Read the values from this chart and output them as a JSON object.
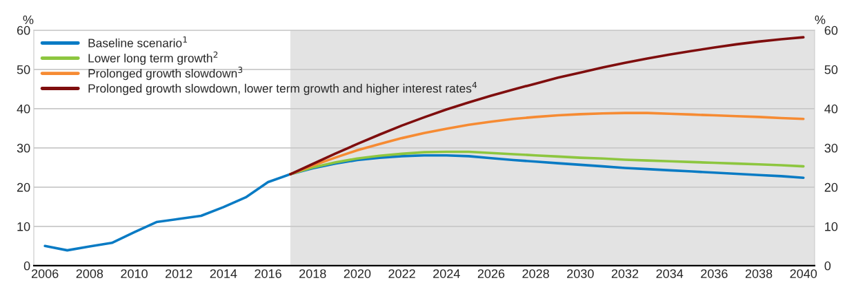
{
  "chart_data": {
    "type": "line",
    "ylabel": "%",
    "y2label": "%",
    "x": [
      2006,
      2007,
      2008,
      2009,
      2010,
      2011,
      2012,
      2013,
      2014,
      2015,
      2016,
      2017,
      2018,
      2019,
      2020,
      2021,
      2022,
      2023,
      2024,
      2025,
      2026,
      2027,
      2028,
      2029,
      2030,
      2031,
      2032,
      2033,
      2034,
      2035,
      2036,
      2037,
      2038,
      2039,
      2040
    ],
    "series": [
      {
        "name": "Baseline scenario$^{1}$",
        "color": "#0a7bc4",
        "values": [
          5.0,
          3.9,
          4.9,
          5.8,
          8.5,
          11.1,
          11.9,
          12.7,
          14.9,
          17.4,
          21.3,
          23.3,
          24.8,
          26.0,
          26.9,
          27.5,
          27.9,
          28.1,
          28.1,
          27.9,
          27.4,
          26.9,
          26.5,
          26.1,
          25.7,
          25.3,
          24.9,
          24.6,
          24.3,
          24.0,
          23.7,
          23.4,
          23.1,
          22.8,
          22.4
        ]
      },
      {
        "name": "Lower long term growth$^{2}$",
        "color": "#8dc63f",
        "values": [
          null,
          null,
          null,
          null,
          null,
          null,
          null,
          null,
          null,
          null,
          null,
          23.3,
          25.0,
          26.3,
          27.3,
          28.0,
          28.5,
          28.9,
          29.0,
          29.0,
          28.7,
          28.4,
          28.1,
          27.8,
          27.5,
          27.3,
          27.0,
          26.8,
          26.6,
          26.4,
          26.2,
          26.0,
          25.8,
          25.6,
          25.3
        ]
      },
      {
        "name": "Prolonged growth slowdown$^{3}$",
        "color": "#f68b33",
        "values": [
          null,
          null,
          null,
          null,
          null,
          null,
          null,
          null,
          null,
          null,
          null,
          23.3,
          25.5,
          27.5,
          29.4,
          31.0,
          32.5,
          33.8,
          34.9,
          35.9,
          36.7,
          37.4,
          37.9,
          38.3,
          38.6,
          38.8,
          38.9,
          38.9,
          38.7,
          38.5,
          38.3,
          38.1,
          37.9,
          37.6,
          37.4
        ]
      },
      {
        "name": "Prolonged growth slowdown, lower term growth and higher interest rates$^{4}$",
        "color": "#7f0e0e",
        "values": [
          null,
          null,
          null,
          null,
          null,
          null,
          null,
          null,
          null,
          null,
          null,
          23.3,
          25.9,
          28.5,
          31.0,
          33.4,
          35.7,
          37.8,
          39.8,
          41.6,
          43.3,
          44.9,
          46.4,
          47.9,
          49.2,
          50.5,
          51.7,
          52.8,
          53.8,
          54.7,
          55.6,
          56.4,
          57.1,
          57.7,
          58.2
        ]
      }
    ],
    "xlim": [
      2005.5,
      2040.5
    ],
    "xticks": [
      2006,
      2008,
      2010,
      2012,
      2014,
      2016,
      2018,
      2020,
      2022,
      2024,
      2026,
      2028,
      2030,
      2032,
      2034,
      2036,
      2038,
      2040
    ],
    "ylim": [
      0,
      60
    ],
    "yticks": [
      0,
      10,
      20,
      30,
      40,
      50,
      60
    ],
    "y2lim": [
      0,
      60
    ],
    "y2ticks": [
      0,
      10,
      20,
      30,
      40,
      50,
      60
    ],
    "bands": [
      {
        "axis": "x",
        "from": 2017,
        "to": 2040.5,
        "color": "#e3e3e3"
      }
    ],
    "grid": "y",
    "legend": "top left",
    "line_style": "solid",
    "marker": "none"
  }
}
